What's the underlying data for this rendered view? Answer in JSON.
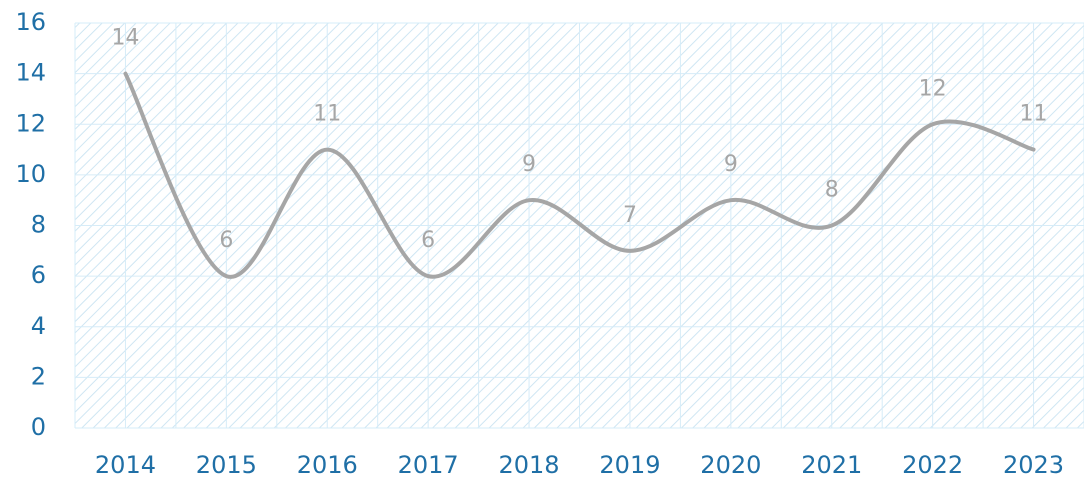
{
  "chart_data": {
    "type": "line",
    "categories": [
      "2014",
      "2015",
      "2016",
      "2017",
      "2018",
      "2019",
      "2020",
      "2021",
      "2022",
      "2023"
    ],
    "series": [
      {
        "name": "Series",
        "color": "#a6a6a6",
        "values": [
          14,
          6,
          11,
          6,
          9,
          7,
          9,
          8,
          12,
          11
        ]
      }
    ],
    "ylim": [
      0,
      16
    ],
    "yticks": [
      0,
      2,
      4,
      6,
      8,
      10,
      12,
      14,
      16
    ],
    "grid": true,
    "smooth": true
  }
}
